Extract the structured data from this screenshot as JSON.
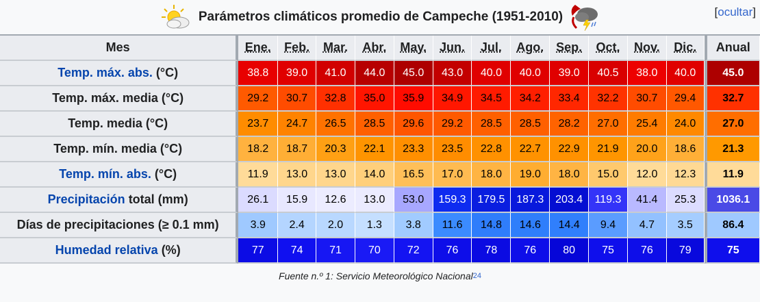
{
  "header": {
    "title": "Parámetros climáticos promedio de Campeche (1951-2010)",
    "hide_label": "ocultar",
    "hide_open": "[",
    "hide_close": "]"
  },
  "columns": {
    "row_header": "Mes",
    "months": [
      "Ene.",
      "Feb.",
      "Mar.",
      "Abr.",
      "May.",
      "Jun.",
      "Jul.",
      "Ago.",
      "Sep.",
      "Oct.",
      "Nov.",
      "Dic."
    ],
    "annual": "Anual"
  },
  "rows": [
    {
      "label_link": "Temp. máx. abs.",
      "label_rest": " (°C)",
      "values": [
        "38.8",
        "39.0",
        "41.0",
        "44.0",
        "45.0",
        "43.0",
        "40.0",
        "40.0",
        "39.0",
        "40.5",
        "38.0",
        "40.0"
      ],
      "annual": "45.0",
      "bg": [
        "#e80000",
        "#e00000",
        "#d10000",
        "#b70000",
        "#ad0000",
        "#c30000",
        "#e00000",
        "#e00000",
        "#e00000",
        "#d90000",
        "#ed0000",
        "#e00000"
      ],
      "annual_bg": "#ad0000",
      "fg": "#ffffff"
    },
    {
      "label_link": "",
      "label_rest": "Temp. máx. media (°C)",
      "values": [
        "29.2",
        "30.7",
        "32.8",
        "35.0",
        "35.9",
        "34.9",
        "34.5",
        "34.2",
        "33.4",
        "32.2",
        "30.7",
        "29.4"
      ],
      "annual": "32.7",
      "bg": [
        "#ff5a00",
        "#ff4c00",
        "#ff3000",
        "#ff1500",
        "#ff0c00",
        "#ff1700",
        "#ff1b00",
        "#ff1f00",
        "#ff2700",
        "#ff3300",
        "#ff4c00",
        "#ff5800"
      ],
      "annual_bg": "#ff3100",
      "fg": "#000000"
    },
    {
      "label_link": "",
      "label_rest": "Temp. media (°C)",
      "values": [
        "23.7",
        "24.7",
        "26.5",
        "28.5",
        "29.6",
        "29.2",
        "28.5",
        "28.5",
        "28.2",
        "27.0",
        "25.4",
        "24.0"
      ],
      "annual": "27.0",
      "bg": [
        "#ff8c00",
        "#ff8300",
        "#ff7200",
        "#ff6000",
        "#ff5600",
        "#ff5a00",
        "#ff6000",
        "#ff6000",
        "#ff6300",
        "#ff6e00",
        "#ff7c00",
        "#ff8900"
      ],
      "annual_bg": "#ff6e00",
      "fg": "#000000"
    },
    {
      "label_link": "",
      "label_rest": "Temp. mín. media (°C)",
      "values": [
        "18.2",
        "18.7",
        "20.3",
        "22.1",
        "23.3",
        "23.5",
        "22.8",
        "22.7",
        "22.9",
        "21.9",
        "20.0",
        "18.6"
      ],
      "annual": "21.3",
      "bg": [
        "#ffb23f",
        "#ffae35",
        "#ffa014",
        "#ff9400",
        "#ff8f00",
        "#ff8d00",
        "#ff9100",
        "#ff9200",
        "#ff9100",
        "#ff9500",
        "#ffa21a",
        "#ffaf37"
      ],
      "annual_bg": "#ff9900",
      "fg": "#000000"
    },
    {
      "label_link": "Temp. mín. abs.",
      "label_rest": " (°C)",
      "values": [
        "11.9",
        "13.0",
        "13.0",
        "14.0",
        "16.5",
        "17.0",
        "18.0",
        "19.0",
        "18.0",
        "15.0",
        "12.0",
        "12.3"
      ],
      "annual": "11.9",
      "bg": [
        "#ffdb99",
        "#ffd68c",
        "#ffd68c",
        "#ffcf7b",
        "#ffbf59",
        "#ffbb51",
        "#ffb443",
        "#ffad31",
        "#ffb443",
        "#ffc96d",
        "#ffdb98",
        "#ffd994"
      ],
      "annual_bg": "#ffdb99",
      "fg": "#000000"
    },
    {
      "label_link": "Precipitación",
      "label_rest": " total (mm)",
      "values": [
        "26.1",
        "15.9",
        "12.6",
        "13.0",
        "53.0",
        "159.3",
        "179.5",
        "187.3",
        "203.4",
        "119.3",
        "41.4",
        "25.3"
      ],
      "annual": "1036.1",
      "bg": [
        "#dbdbff",
        "#e8e8ff",
        "#ececff",
        "#ebebff",
        "#a7a7ff",
        "#0e2bf0",
        "#0a1ee0",
        "#0819dc",
        "#040ed2",
        "#3434f8",
        "#b9b9ff",
        "#dcdcff"
      ],
      "annual_bg": "#4a4ae6",
      "fg_list": [
        "#000000",
        "#000000",
        "#000000",
        "#000000",
        "#000000",
        "#ffffff",
        "#ffffff",
        "#ffffff",
        "#ffffff",
        "#ffffff",
        "#000000",
        "#000000"
      ],
      "annual_fg": "#ffffff"
    },
    {
      "label_link": "",
      "label_rest": "Días de precipitaciones (≥ 0.1 mm)",
      "values": [
        "3.9",
        "2.4",
        "2.0",
        "1.3",
        "3.8",
        "11.6",
        "14.8",
        "14.6",
        "14.4",
        "9.4",
        "4.7",
        "3.5"
      ],
      "annual": "86.4",
      "bg": [
        "#9fc9ff",
        "#b4d5ff",
        "#b9d8ff",
        "#c5dfff",
        "#a1cbff",
        "#3b8bff",
        "#2f7dfb",
        "#2f7efb",
        "#307ffc",
        "#5a9cff",
        "#93c1ff",
        "#a5cdff"
      ],
      "annual_bg": "#9fc9ff",
      "fg": "#000000"
    },
    {
      "label_link": "Humedad relativa",
      "label_rest": " (%)",
      "values": [
        "77",
        "74",
        "71",
        "70",
        "72",
        "76",
        "78",
        "76",
        "80",
        "75",
        "76",
        "79"
      ],
      "annual": "75",
      "bg": [
        "#0c0ce5",
        "#1010f0",
        "#1717f3",
        "#1a1af5",
        "#1414f2",
        "#0e0ee9",
        "#0b0be2",
        "#0e0ee9",
        "#0606d8",
        "#0f0fec",
        "#0e0ee9",
        "#0909dd"
      ],
      "annual_bg": "#0f0fec",
      "fg": "#ffffff"
    }
  ],
  "footer": {
    "text": "Fuente n.º 1: Servicio Meteorológico Nacional",
    "ref": "24"
  },
  "icons": {
    "left": "sun-cloud-icon",
    "right": "thunderstorm-icon"
  }
}
